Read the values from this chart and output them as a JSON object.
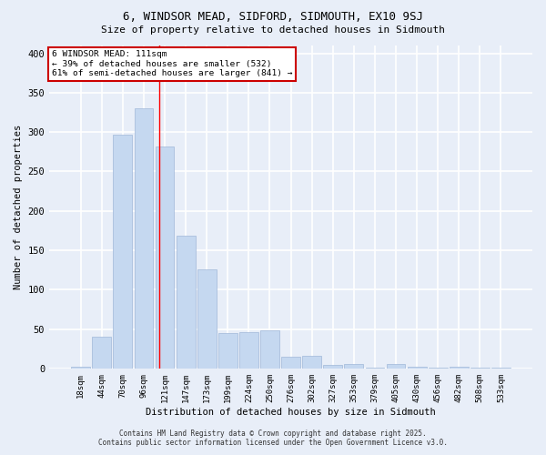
{
  "title1": "6, WINDSOR MEAD, SIDFORD, SIDMOUTH, EX10 9SJ",
  "title2": "Size of property relative to detached houses in Sidmouth",
  "xlabel": "Distribution of detached houses by size in Sidmouth",
  "ylabel": "Number of detached properties",
  "bar_labels": [
    "18sqm",
    "44sqm",
    "70sqm",
    "96sqm",
    "121sqm",
    "147sqm",
    "173sqm",
    "199sqm",
    "224sqm",
    "250sqm",
    "276sqm",
    "302sqm",
    "327sqm",
    "353sqm",
    "379sqm",
    "405sqm",
    "430sqm",
    "456sqm",
    "482sqm",
    "508sqm",
    "533sqm"
  ],
  "bar_values": [
    2,
    40,
    297,
    330,
    282,
    169,
    126,
    45,
    46,
    48,
    15,
    16,
    4,
    6,
    1,
    6,
    2,
    1,
    2,
    1,
    1
  ],
  "bar_color": "#c5d8f0",
  "bar_edge_color": "#a0b8d8",
  "background_color": "#e8eef8",
  "grid_color": "#ffffff",
  "redline_x": 3.72,
  "annotation_text": "6 WINDSOR MEAD: 111sqm\n← 39% of detached houses are smaller (532)\n61% of semi-detached houses are larger (841) →",
  "annotation_box_color": "#ffffff",
  "annotation_box_edge_color": "#cc0000",
  "ylim": [
    0,
    410
  ],
  "yticks": [
    0,
    50,
    100,
    150,
    200,
    250,
    300,
    350,
    400
  ],
  "footer1": "Contains HM Land Registry data © Crown copyright and database right 2025.",
  "footer2": "Contains public sector information licensed under the Open Government Licence v3.0."
}
